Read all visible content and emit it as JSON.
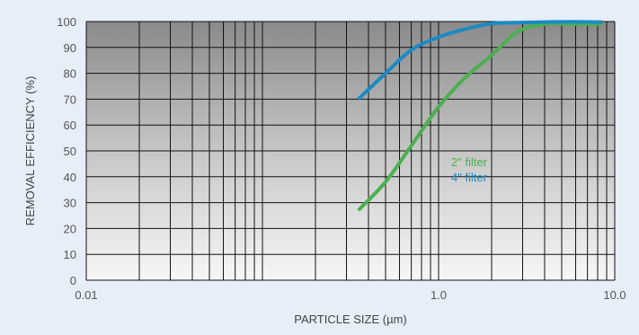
{
  "chart_data": {
    "type": "line",
    "title": "",
    "xlabel": "PARTICLE SIZE (µm)",
    "ylabel": "REMOVAL EFFICIENCY (%)",
    "xscale": "log",
    "xlim": [
      0.01,
      10.0
    ],
    "ylim": [
      0,
      100
    ],
    "x_tick_labels": [
      "0.01",
      "1.0",
      "10.0"
    ],
    "x_tick_values": [
      0.01,
      1.0,
      10.0
    ],
    "y_tick_labels": [
      "0",
      "10",
      "20",
      "30",
      "40",
      "50",
      "60",
      "70",
      "80",
      "90",
      "100"
    ],
    "grid": true,
    "legend_position": "right",
    "series": [
      {
        "name": "2\" filter",
        "color": "#4caf50",
        "x": [
          0.35,
          0.5,
          0.7,
          1.0,
          1.4,
          2.0,
          2.8,
          4.0,
          5.6,
          8.5
        ],
        "y": [
          27,
          38,
          52,
          67,
          78,
          87,
          96,
          99,
          99,
          99
        ]
      },
      {
        "name": "4\" filter",
        "color": "#1b8ac4",
        "x": [
          0.35,
          0.5,
          0.7,
          1.0,
          1.4,
          2.0,
          2.8,
          4.0,
          5.6,
          8.5
        ],
        "y": [
          70,
          80,
          89,
          94,
          97,
          99.2,
          99.6,
          99.8,
          99.9,
          99.8
        ]
      }
    ]
  }
}
